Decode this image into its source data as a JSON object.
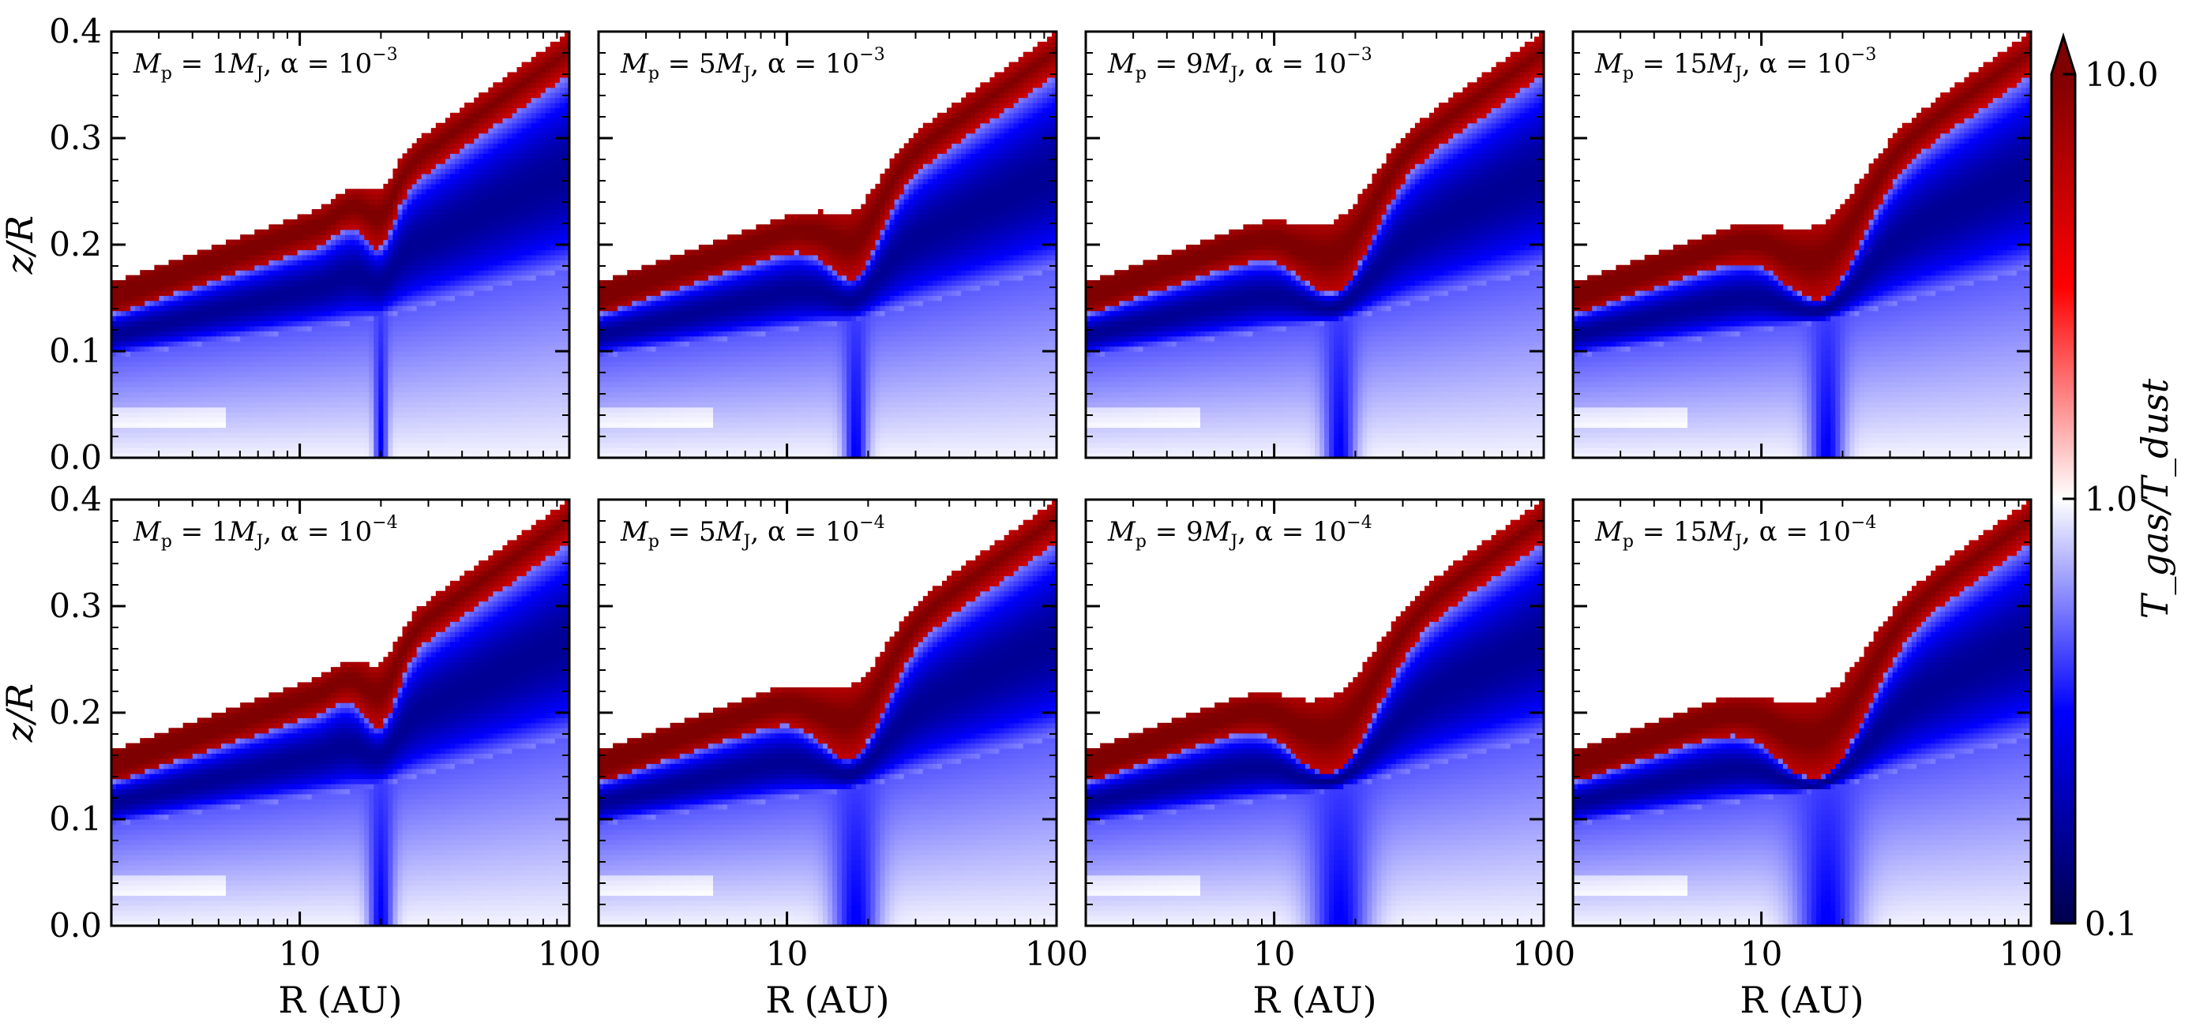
{
  "chart_data": {
    "type": "heatmap",
    "layout": "2 rows x 4 columns of panels sharing axes",
    "xlabel": "R (AU)",
    "ylabel": "z/R",
    "xscale": "log",
    "xlim": [
      2,
      100
    ],
    "ylim": [
      0.0,
      0.4
    ],
    "x_ticks": [
      10,
      100
    ],
    "x_tick_labels": [
      "10",
      "100"
    ],
    "y_ticks": [
      0.0,
      0.1,
      0.2,
      0.3,
      0.4
    ],
    "y_tick_labels": [
      "0.0",
      "0.1",
      "0.2",
      "0.3",
      "0.4"
    ],
    "colorbar": {
      "label": "T_gas/T_dust",
      "scale": "log",
      "range": [
        0.1,
        10.0
      ],
      "ticks": [
        0.1,
        1.0,
        10.0
      ],
      "tick_labels": [
        "0.1",
        "1.0",
        "10.0"
      ],
      "extend": "max",
      "colormap": "seismic"
    },
    "panels": [
      {
        "row": 0,
        "col": 0,
        "mass": "1",
        "alpha_exp": "−3",
        "Mp_MJ": 1,
        "alpha": 0.001,
        "gap_center_au": 20,
        "gap_halfwidth_dex": 0.05,
        "gap_depth": 0.04
      },
      {
        "row": 0,
        "col": 1,
        "mass": "5",
        "alpha_exp": "−3",
        "Mp_MJ": 5,
        "alpha": 0.001,
        "gap_center_au": 18,
        "gap_halfwidth_dex": 0.09,
        "gap_depth": 0.06
      },
      {
        "row": 0,
        "col": 2,
        "mass": "9",
        "alpha_exp": "−3",
        "Mp_MJ": 9,
        "alpha": 0.001,
        "gap_center_au": 17.5,
        "gap_halfwidth_dex": 0.12,
        "gap_depth": 0.07
      },
      {
        "row": 0,
        "col": 3,
        "mass": "15",
        "alpha_exp": "−3",
        "Mp_MJ": 15,
        "alpha": 0.001,
        "gap_center_au": 17.5,
        "gap_halfwidth_dex": 0.13,
        "gap_depth": 0.075
      },
      {
        "row": 1,
        "col": 0,
        "mass": "1",
        "alpha_exp": "−4",
        "Mp_MJ": 1,
        "alpha": 0.0001,
        "gap_center_au": 20,
        "gap_halfwidth_dex": 0.06,
        "gap_depth": 0.05
      },
      {
        "row": 1,
        "col": 1,
        "mass": "5",
        "alpha_exp": "−4",
        "Mp_MJ": 5,
        "alpha": 0.0001,
        "gap_center_au": 18,
        "gap_halfwidth_dex": 0.11,
        "gap_depth": 0.07
      },
      {
        "row": 1,
        "col": 2,
        "mass": "9",
        "alpha_exp": "−4",
        "Mp_MJ": 9,
        "alpha": 0.0001,
        "gap_center_au": 17.5,
        "gap_halfwidth_dex": 0.14,
        "gap_depth": 0.08
      },
      {
        "row": 1,
        "col": 3,
        "mass": "15",
        "alpha_exp": "−4",
        "Mp_MJ": 15,
        "alpha": 0.0001,
        "gap_center_au": 17.5,
        "gap_halfwidth_dex": 0.15,
        "gap_depth": 0.085
      }
    ]
  }
}
